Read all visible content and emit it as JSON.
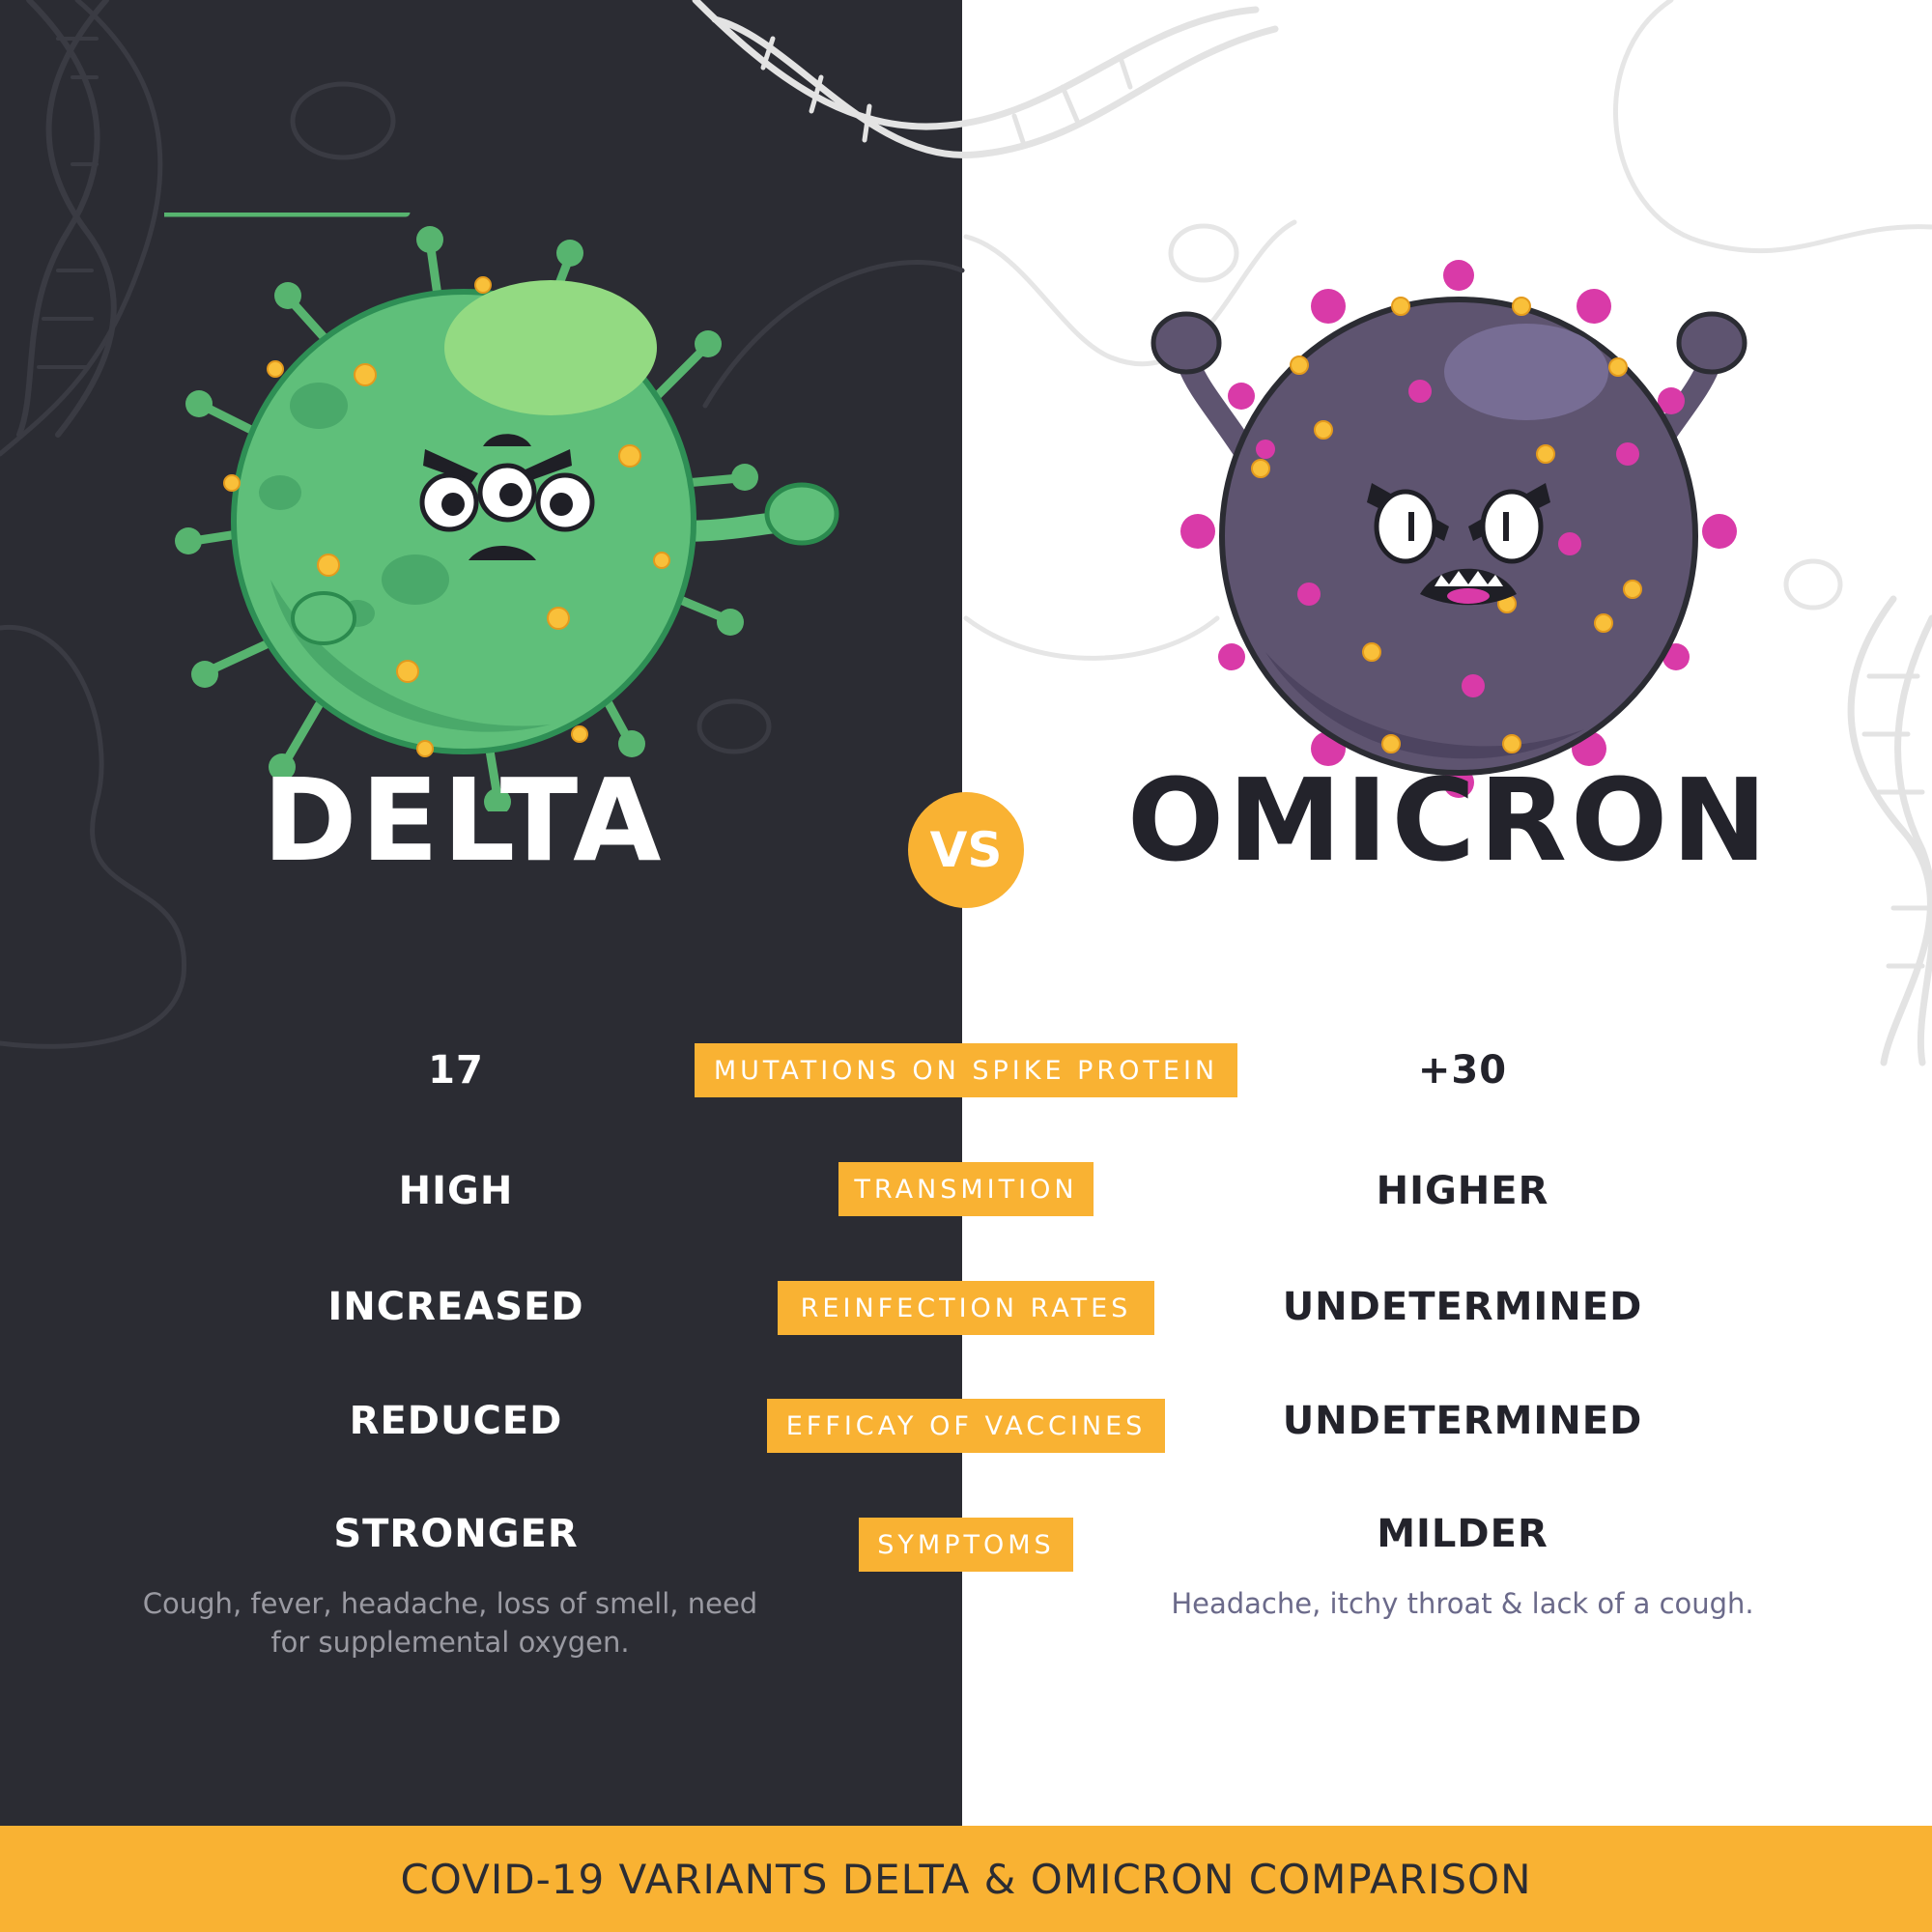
{
  "colors": {
    "dark_background": "#2b2c33",
    "light_background": "#ffffff",
    "accent": "#f9b233",
    "delta_green": "#5fbf7a",
    "omicron_purple": "#5e5470",
    "omicron_spike_pink": "#d93aa8"
  },
  "delta": {
    "name": "DELTA",
    "icon": "delta-virus-character"
  },
  "vs_label": "VS",
  "omicron": {
    "name": "OMICRON",
    "icon": "omicron-virus-character"
  },
  "rows": [
    {
      "label": "MUTATIONS ON SPIKE PROTEIN",
      "delta": "17",
      "omicron": "+30"
    },
    {
      "label": "TRANSMITION",
      "delta": "HIGH",
      "omicron": "HIGHER"
    },
    {
      "label": "REINFECTION RATES",
      "delta": "INCREASED",
      "omicron": "UNDETERMINED"
    },
    {
      "label": "EFFICAY OF VACCINES",
      "delta": "REDUCED",
      "omicron": "UNDETERMINED"
    },
    {
      "label": "SYMPTOMS",
      "delta": "STRONGER",
      "omicron": "MILDER"
    }
  ],
  "delta_symptoms": "Cough, fever, headache, loss of smell, need for supplemental oxygen.",
  "omicron_symptoms": "Headache, itchy throat & lack of a cough.",
  "footer": {
    "title": "COVID-19 VARIANTS DELTA & OMICRON COMPARISON"
  }
}
